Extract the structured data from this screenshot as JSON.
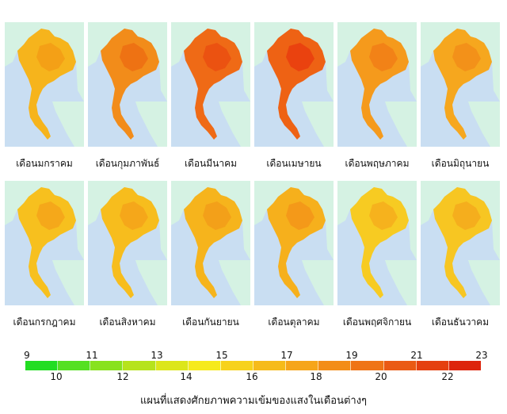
{
  "months": [
    {
      "label": "เดือนมกราคม",
      "fill": "#f6b41c",
      "hot": "#f39a14"
    },
    {
      "label": "เดือนกุมภาพันธ์",
      "fill": "#f28c1a",
      "hot": "#ec6a12"
    },
    {
      "label": "เดือนมีนาคม",
      "fill": "#ef6a16",
      "hot": "#e94b10"
    },
    {
      "label": "เดือนเมษายน",
      "fill": "#ee6214",
      "hot": "#e8380e"
    },
    {
      "label": "เดือนพฤษภาคม",
      "fill": "#f59a1c",
      "hot": "#f07a16"
    },
    {
      "label": "เดือนมิถุนายน",
      "fill": "#f6a71e",
      "hot": "#f28a18"
    },
    {
      "label": "เดือนกรกฎาคม",
      "fill": "#f7c01e",
      "hot": "#f4a01a"
    },
    {
      "label": "เดือนสิงหาคม",
      "fill": "#f7bd1d",
      "hot": "#f4a01a"
    },
    {
      "label": "เดือนกันยายน",
      "fill": "#f6b41c",
      "hot": "#f29a18"
    },
    {
      "label": "เดือนตุลาคม",
      "fill": "#f6b01c",
      "hot": "#f39218"
    },
    {
      "label": "เดือนพฤศจิกายน",
      "fill": "#f7cb22",
      "hot": "#f5a91c"
    },
    {
      "label": "เดือนธันวาคม",
      "fill": "#f7c622",
      "hot": "#f4a51c"
    }
  ],
  "scale": {
    "top_labels": [
      "9",
      "11",
      "13",
      "15",
      "17",
      "19",
      "21",
      "23"
    ],
    "bottom_labels": [
      "10",
      "12",
      "14",
      "16",
      "18",
      "20",
      "22"
    ],
    "colors": [
      "#22dd22",
      "#55e022",
      "#88e21e",
      "#b6e31c",
      "#dce61a",
      "#f6ea1c",
      "#f7d21c",
      "#f6bb1a",
      "#f6a51a",
      "#f38d18",
      "#ef7416",
      "#ea5a14",
      "#e54010",
      "#dd240c"
    ]
  },
  "title": "แผนที่แสดงศักยภาพความเข้มของแสงในเดือนต่างๆ"
}
